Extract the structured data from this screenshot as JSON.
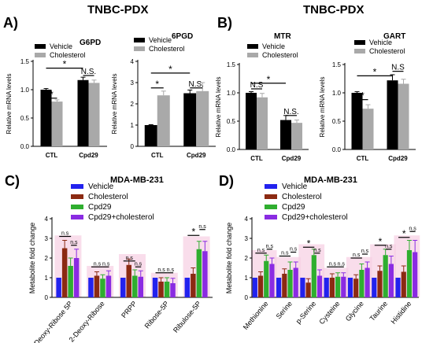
{
  "header": {
    "left_title": "TNBC-PDX",
    "right_title": "TNBC-PDX",
    "bottom_title": "MDA-MB-231",
    "panel_A": "A)",
    "panel_B": "B)",
    "panel_C": "C)",
    "panel_D": "D)"
  },
  "colors": {
    "black": "#000000",
    "gray": "#a9a9a9",
    "vehicle": "#2222ee",
    "cholesterol": "#8b2a12",
    "cpd29": "#2fae2f",
    "combo": "#8a2be2",
    "highlight": "#f7cfe3"
  },
  "chart_data": [
    {
      "id": "A1",
      "type": "bar",
      "title": "G6PD",
      "ylabel": "Relative mRNA levels",
      "categories": [
        "CTL",
        "Cpd29"
      ],
      "ylim": [
        0,
        1.5
      ],
      "yticks": [
        0,
        0.5,
        1.0,
        1.5
      ],
      "series": [
        {
          "name": "Vehicle",
          "values": [
            1.0,
            1.17
          ],
          "errors": [
            0.02,
            0.05
          ]
        },
        {
          "name": "Cholesterol",
          "values": [
            0.79,
            1.12
          ],
          "errors": [
            0.03,
            0.05
          ]
        }
      ],
      "annotations": [
        {
          "text": "*",
          "from": [
            0,
            0
          ],
          "to": [
            0,
            1
          ],
          "y": 0.85
        },
        {
          "text": "N.S.",
          "from": [
            1,
            0
          ],
          "to": [
            1,
            1
          ],
          "y": 1.25
        },
        {
          "text": "*",
          "from": [
            0,
            0
          ],
          "to": [
            1,
            0
          ],
          "y": 1.38
        }
      ]
    },
    {
      "id": "A2",
      "type": "bar",
      "title": "6PGD",
      "ylabel": "Relative mRNA levels",
      "categories": [
        "CTL",
        "Cpd29"
      ],
      "ylim": [
        0,
        4
      ],
      "yticks": [
        0,
        1,
        2,
        3,
        4
      ],
      "series": [
        {
          "name": "Vehicle",
          "values": [
            1.0,
            2.5
          ],
          "errors": [
            0.02,
            0.15
          ]
        },
        {
          "name": "Cholesterol",
          "values": [
            2.4,
            2.6
          ],
          "errors": [
            0.2,
            0.4
          ]
        }
      ],
      "annotations": [
        {
          "text": "*",
          "from": [
            0,
            0
          ],
          "to": [
            0,
            1
          ],
          "y": 2.75
        },
        {
          "text": "N.S.",
          "from": [
            1,
            0
          ],
          "to": [
            1,
            1
          ],
          "y": 2.75
        },
        {
          "text": "*",
          "from": [
            0,
            0
          ],
          "to": [
            1,
            0
          ],
          "y": 3.45
        }
      ]
    },
    {
      "id": "B1",
      "type": "bar",
      "title": "MTR",
      "ylabel": "Relative mRNA levels",
      "categories": [
        "CTL",
        "Cpd29"
      ],
      "ylim": [
        0,
        1.5
      ],
      "yticks": [
        0,
        0.5,
        1.0,
        1.5
      ],
      "series": [
        {
          "name": "Vehicle",
          "values": [
            1.0,
            0.52
          ],
          "errors": [
            0.02,
            0.08
          ]
        },
        {
          "name": "Cholesterol",
          "values": [
            0.92,
            0.47
          ],
          "errors": [
            0.07,
            0.05
          ]
        }
      ],
      "annotations": [
        {
          "text": "N.S",
          "from": [
            0,
            0
          ],
          "to": [
            0,
            1
          ],
          "y": 1.07
        },
        {
          "text": "N.S.",
          "from": [
            1,
            0
          ],
          "to": [
            1,
            1
          ],
          "y": 0.6
        },
        {
          "text": "*",
          "from": [
            0,
            0
          ],
          "to": [
            1,
            0
          ],
          "y": 1.17
        }
      ]
    },
    {
      "id": "B2",
      "type": "bar",
      "title": "GART",
      "ylabel": "Relative mRNA levels",
      "categories": [
        "CTL",
        "Cpd29"
      ],
      "ylim": [
        0,
        1.5
      ],
      "yticks": [
        0,
        0.5,
        1.0,
        1.5
      ],
      "series": [
        {
          "name": "Vehicle",
          "values": [
            1.0,
            1.22
          ],
          "errors": [
            0.02,
            0.1
          ]
        },
        {
          "name": "Cholesterol",
          "values": [
            0.72,
            1.16
          ],
          "errors": [
            0.07,
            0.08
          ]
        }
      ],
      "annotations": [
        {
          "text": "*",
          "from": [
            0,
            0
          ],
          "to": [
            0,
            1
          ],
          "y": 0.88
        },
        {
          "text": "*",
          "from": [
            0,
            0
          ],
          "to": [
            1,
            0
          ],
          "y": 1.3
        },
        {
          "text": "N.S",
          "from": [
            1,
            0
          ],
          "to": [
            1,
            1
          ],
          "y": 1.38
        }
      ]
    },
    {
      "id": "C",
      "type": "bar",
      "title": "MDA-MB-231",
      "ylabel": "Metabolite fold change",
      "categories": [
        "2-Deoxy-Ribose 5P",
        "2-Deoxy-Ribose",
        "PRPP",
        "Ribose-5P",
        "Ribulose-5P"
      ],
      "ylim": [
        0,
        4
      ],
      "yticks": [
        0,
        1,
        2,
        3,
        4
      ],
      "series": [
        {
          "name": "Vehicle",
          "values": [
            1.0,
            1.0,
            1.0,
            1.0,
            1.0
          ],
          "errors": [
            0,
            0,
            0,
            0,
            0
          ]
        },
        {
          "name": "Cholesterol",
          "values": [
            2.5,
            1.1,
            1.65,
            0.8,
            1.2
          ],
          "errors": [
            0.4,
            0.2,
            0.3,
            0.2,
            0.3
          ]
        },
        {
          "name": "Cpd29",
          "values": [
            1.6,
            0.95,
            1.1,
            0.8,
            2.45
          ],
          "errors": [
            0.4,
            0.2,
            0.3,
            0.2,
            0.4
          ]
        },
        {
          "name": "Cpd29+cholesterol",
          "values": [
            2.0,
            1.1,
            1.05,
            0.72,
            2.35
          ],
          "errors": [
            0.45,
            0.25,
            0.3,
            0.25,
            0.5
          ]
        }
      ],
      "annotations": [
        {
          "text": "n.s",
          "from": [
            0,
            0
          ],
          "to": [
            0,
            2
          ],
          "y": 3.1
        },
        {
          "text": "n.s",
          "from": [
            0,
            2
          ],
          "to": [
            0,
            3
          ],
          "y": 2.65
        },
        {
          "text": "n.s",
          "from": [
            1,
            0
          ],
          "to": [
            1,
            2
          ],
          "y": 1.55
        },
        {
          "text": "n.s",
          "from": [
            1,
            2
          ],
          "to": [
            1,
            3
          ],
          "y": 1.55
        },
        {
          "text": "n.s",
          "from": [
            2,
            0
          ],
          "to": [
            2,
            2
          ],
          "y": 1.85
        },
        {
          "text": "n.s",
          "from": [
            2,
            2
          ],
          "to": [
            2,
            3
          ],
          "y": 1.55
        },
        {
          "text": "n.s",
          "from": [
            3,
            0
          ],
          "to": [
            3,
            2
          ],
          "y": 1.25
        },
        {
          "text": "n.s",
          "from": [
            3,
            2
          ],
          "to": [
            3,
            3
          ],
          "y": 1.25
        },
        {
          "text": "*",
          "from": [
            4,
            0
          ],
          "to": [
            4,
            2
          ],
          "y": 3.15
        },
        {
          "text": "n.s",
          "from": [
            4,
            2
          ],
          "to": [
            4,
            3
          ],
          "y": 3.45
        }
      ]
    },
    {
      "id": "D",
      "type": "bar",
      "title": "MDA-MB-231",
      "ylabel": "Metabolite fold change",
      "categories": [
        "Methionine",
        "Serine",
        "p-Serine",
        "Cysteine",
        "Glycine",
        "Taurine",
        "Histidine"
      ],
      "ylim": [
        0,
        4
      ],
      "yticks": [
        0,
        1,
        2,
        3,
        4
      ],
      "series": [
        {
          "name": "Vehicle",
          "values": [
            1.0,
            1.0,
            1.0,
            1.0,
            1.0,
            1.0,
            1.0
          ],
          "errors": [
            0,
            0,
            0,
            0,
            0,
            0,
            0
          ]
        },
        {
          "name": "Cholesterol",
          "values": [
            1.1,
            1.2,
            0.75,
            1.0,
            0.95,
            1.35,
            1.3
          ],
          "errors": [
            0.2,
            0.25,
            0.2,
            0.2,
            0.2,
            0.25,
            0.3
          ]
        },
        {
          "name": "Cpd29",
          "values": [
            1.85,
            1.4,
            2.15,
            1.05,
            1.4,
            2.15,
            2.4
          ],
          "errors": [
            0.3,
            0.4,
            0.3,
            0.2,
            0.3,
            0.3,
            0.5
          ]
        },
        {
          "name": "Cpd29+cholesterol",
          "values": [
            1.7,
            1.5,
            1.1,
            1.05,
            1.5,
            1.7,
            2.3
          ],
          "errors": [
            0.3,
            0.3,
            0.3,
            0.2,
            0.3,
            0.4,
            0.6
          ]
        }
      ],
      "annotations": [
        {
          "text": "n.s",
          "from": [
            0,
            0
          ],
          "to": [
            0,
            2
          ],
          "y": 2.25
        },
        {
          "text": "n.s",
          "from": [
            0,
            2
          ],
          "to": [
            0,
            3
          ],
          "y": 2.45
        },
        {
          "text": "n.s",
          "from": [
            1,
            0
          ],
          "to": [
            1,
            2
          ],
          "y": 2.1
        },
        {
          "text": "n.s",
          "from": [
            1,
            2
          ],
          "to": [
            1,
            3
          ],
          "y": 2.3
        },
        {
          "text": "*",
          "from": [
            2,
            0
          ],
          "to": [
            2,
            2
          ],
          "y": 2.55
        },
        {
          "text": "n.s",
          "from": [
            2,
            2
          ],
          "to": [
            2,
            3
          ],
          "y": 2.25
        },
        {
          "text": "n.s",
          "from": [
            3,
            0
          ],
          "to": [
            3,
            2
          ],
          "y": 1.55
        },
        {
          "text": "n.s",
          "from": [
            3,
            2
          ],
          "to": [
            3,
            3
          ],
          "y": 1.55
        },
        {
          "text": "n.s",
          "from": [
            4,
            0
          ],
          "to": [
            4,
            2
          ],
          "y": 2.0
        },
        {
          "text": "n.s",
          "from": [
            4,
            2
          ],
          "to": [
            4,
            3
          ],
          "y": 2.2
        },
        {
          "text": "*",
          "from": [
            5,
            0
          ],
          "to": [
            5,
            2
          ],
          "y": 2.65
        },
        {
          "text": "n.s",
          "from": [
            5,
            2
          ],
          "to": [
            5,
            3
          ],
          "y": 2.45
        },
        {
          "text": "*",
          "from": [
            6,
            0
          ],
          "to": [
            6,
            2
          ],
          "y": 3.05
        },
        {
          "text": "n.s",
          "from": [
            6,
            2
          ],
          "to": [
            6,
            3
          ],
          "y": 3.35
        }
      ]
    }
  ]
}
